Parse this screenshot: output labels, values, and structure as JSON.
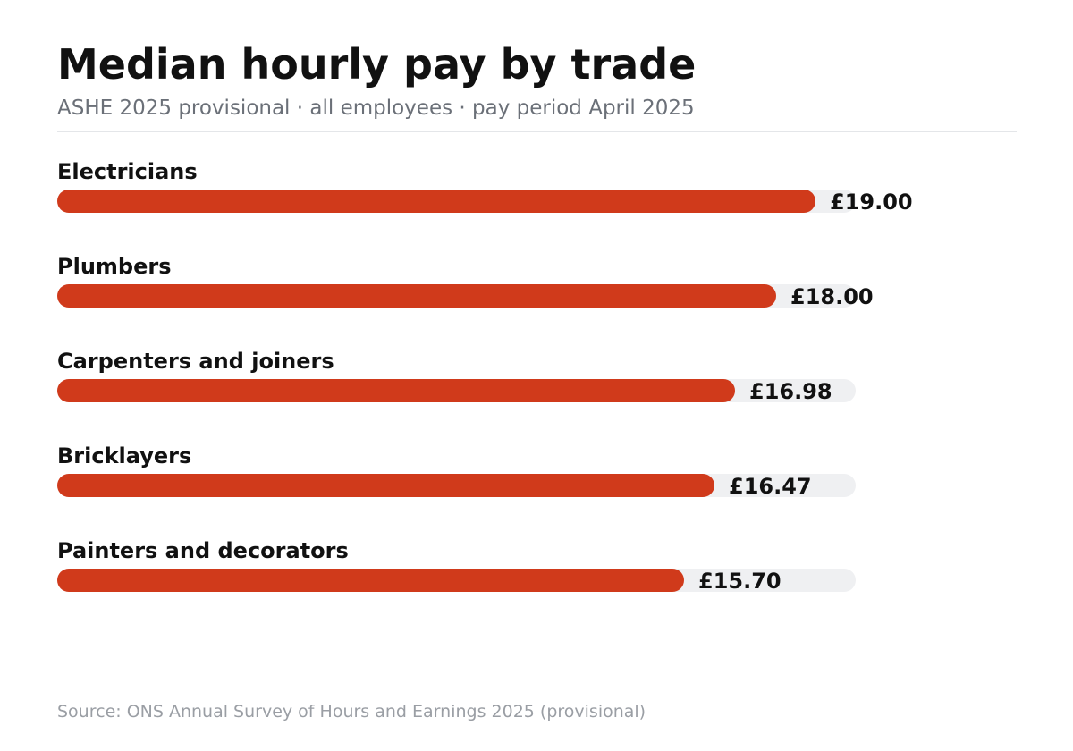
{
  "header": {
    "title": "Median hourly pay by trade",
    "subtitle": "ASHE 2025 provisional · all employees · pay period April 2025"
  },
  "footer": {
    "source": "Source: ONS Annual Survey of Hours and Earnings 2025 (provisional)"
  },
  "colors": {
    "bar": "#d03a1b",
    "track": "#eff0f2",
    "text": "#111111",
    "subtitle": "#6b7078",
    "source": "#9a9ea4"
  },
  "chart_data": {
    "type": "bar",
    "orientation": "horizontal",
    "title": "Median hourly pay by trade",
    "subtitle": "ASHE 2025 provisional · all employees · pay period April 2025",
    "categories": [
      "Electricians",
      "Plumbers",
      "Carpenters and joiners",
      "Bricklayers",
      "Painters and decorators"
    ],
    "values": [
      19.0,
      18.0,
      16.98,
      16.47,
      15.7
    ],
    "value_labels": [
      "£19.00",
      "£18.00",
      "£16.98",
      "£16.47",
      "£15.70"
    ],
    "unit": "£ per hour",
    "xlim": [
      0,
      20
    ],
    "grid": false,
    "legend": "none"
  }
}
